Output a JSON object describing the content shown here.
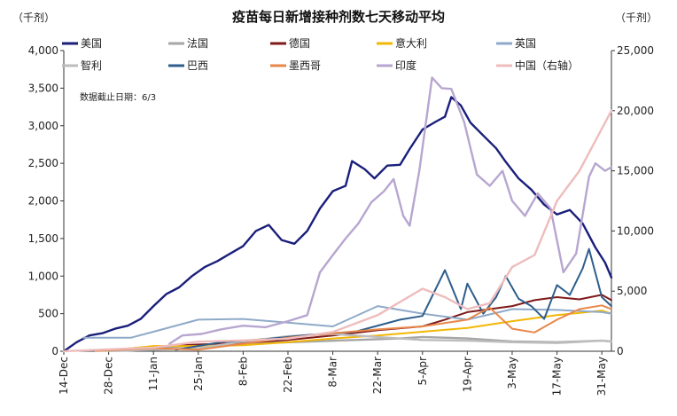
{
  "chart_data": {
    "type": "line",
    "title": "疫苗每日新增接种剂数七天移动平均",
    "left_unit": "（千剂）",
    "right_unit": "（千剂）",
    "note": "数据截止日期：6/3",
    "ylim": [
      0,
      4000
    ],
    "y2lim": [
      0,
      25000
    ],
    "yticks": [
      "0",
      "500",
      "1,000",
      "1,500",
      "2,000",
      "2,500",
      "3,000",
      "3,500",
      "4,000"
    ],
    "y2ticks": [
      "0",
      "5,000",
      "10,000",
      "15,000",
      "20,000",
      "25,000"
    ],
    "x_range": [
      "2020-12-14",
      "2021-06-03"
    ],
    "xticks": [
      {
        "date": "2020-12-14",
        "label": "14-Dec"
      },
      {
        "date": "2020-12-28",
        "label": "28-Dec"
      },
      {
        "date": "2021-01-11",
        "label": "11-Jan"
      },
      {
        "date": "2021-01-25",
        "label": "25-Jan"
      },
      {
        "date": "2021-02-08",
        "label": "8-Feb"
      },
      {
        "date": "2021-02-22",
        "label": "22-Feb"
      },
      {
        "date": "2021-03-08",
        "label": "8-Mar"
      },
      {
        "date": "2021-03-22",
        "label": "22-Mar"
      },
      {
        "date": "2021-04-05",
        "label": "5-Apr"
      },
      {
        "date": "2021-04-19",
        "label": "19-Apr"
      },
      {
        "date": "2021-05-03",
        "label": "3-May"
      },
      {
        "date": "2021-05-17",
        "label": "17-May"
      },
      {
        "date": "2021-05-31",
        "label": "31-May"
      }
    ],
    "series": [
      {
        "name": "美国",
        "color": "#1a1f7a",
        "width": 2.4,
        "axis": "left",
        "points": [
          [
            "2020-12-14",
            0
          ],
          [
            "2020-12-18",
            120
          ],
          [
            "2020-12-22",
            210
          ],
          [
            "2020-12-26",
            240
          ],
          [
            "2020-12-30",
            300
          ],
          [
            "2021-01-03",
            340
          ],
          [
            "2021-01-07",
            430
          ],
          [
            "2021-01-11",
            600
          ],
          [
            "2021-01-15",
            760
          ],
          [
            "2021-01-19",
            850
          ],
          [
            "2021-01-23",
            1000
          ],
          [
            "2021-01-27",
            1120
          ],
          [
            "2021-01-31",
            1200
          ],
          [
            "2021-02-04",
            1300
          ],
          [
            "2021-02-08",
            1400
          ],
          [
            "2021-02-12",
            1600
          ],
          [
            "2021-02-16",
            1680
          ],
          [
            "2021-02-20",
            1480
          ],
          [
            "2021-02-24",
            1430
          ],
          [
            "2021-02-28",
            1600
          ],
          [
            "2021-03-04",
            1900
          ],
          [
            "2021-03-08",
            2130
          ],
          [
            "2021-03-12",
            2200
          ],
          [
            "2021-03-14",
            2530
          ],
          [
            "2021-03-18",
            2420
          ],
          [
            "2021-03-21",
            2300
          ],
          [
            "2021-03-25",
            2470
          ],
          [
            "2021-03-29",
            2480
          ],
          [
            "2021-04-01",
            2690
          ],
          [
            "2021-04-05",
            2950
          ],
          [
            "2021-04-09",
            3050
          ],
          [
            "2021-04-12",
            3120
          ],
          [
            "2021-04-14",
            3380
          ],
          [
            "2021-04-17",
            3270
          ],
          [
            "2021-04-20",
            3040
          ],
          [
            "2021-04-24",
            2870
          ],
          [
            "2021-04-28",
            2700
          ],
          [
            "2021-05-01",
            2520
          ],
          [
            "2021-05-05",
            2300
          ],
          [
            "2021-05-09",
            2150
          ],
          [
            "2021-05-13",
            1950
          ],
          [
            "2021-05-17",
            1820
          ],
          [
            "2021-05-21",
            1880
          ],
          [
            "2021-05-25",
            1700
          ],
          [
            "2021-05-29",
            1380
          ],
          [
            "2021-06-01",
            1180
          ],
          [
            "2021-06-03",
            980
          ]
        ]
      },
      {
        "name": "法国",
        "color": "#a6a6a6",
        "width": 2.4,
        "axis": "left",
        "points": [
          [
            "2020-12-28",
            5
          ],
          [
            "2021-01-04",
            10
          ],
          [
            "2021-01-11",
            30
          ],
          [
            "2021-01-18",
            60
          ],
          [
            "2021-01-25",
            80
          ],
          [
            "2021-02-01",
            90
          ],
          [
            "2021-02-15",
            110
          ],
          [
            "2021-03-01",
            130
          ],
          [
            "2021-03-15",
            150
          ],
          [
            "2021-03-29",
            170
          ],
          [
            "2021-04-05",
            190
          ],
          [
            "2021-04-19",
            170
          ],
          [
            "2021-05-03",
            130
          ],
          [
            "2021-05-17",
            120
          ],
          [
            "2021-05-31",
            140
          ],
          [
            "2021-06-03",
            130
          ]
        ]
      },
      {
        "name": "德国",
        "color": "#7f1a1a",
        "width": 2.0,
        "axis": "left",
        "points": [
          [
            "2020-12-27",
            5
          ],
          [
            "2021-01-04",
            40
          ],
          [
            "2021-01-11",
            60
          ],
          [
            "2021-01-25",
            90
          ],
          [
            "2021-02-08",
            110
          ],
          [
            "2021-02-22",
            150
          ],
          [
            "2021-03-08",
            210
          ],
          [
            "2021-03-22",
            280
          ],
          [
            "2021-04-05",
            330
          ],
          [
            "2021-04-12",
            420
          ],
          [
            "2021-04-19",
            520
          ],
          [
            "2021-04-26",
            560
          ],
          [
            "2021-05-03",
            600
          ],
          [
            "2021-05-10",
            680
          ],
          [
            "2021-05-17",
            720
          ],
          [
            "2021-05-24",
            690
          ],
          [
            "2021-05-31",
            750
          ],
          [
            "2021-06-03",
            680
          ]
        ]
      },
      {
        "name": "意大利",
        "color": "#f2b705",
        "width": 2.0,
        "axis": "left",
        "points": [
          [
            "2020-12-27",
            5
          ],
          [
            "2021-01-04",
            40
          ],
          [
            "2021-01-11",
            70
          ],
          [
            "2021-01-25",
            70
          ],
          [
            "2021-02-08",
            80
          ],
          [
            "2021-02-22",
            120
          ],
          [
            "2021-03-08",
            170
          ],
          [
            "2021-03-22",
            210
          ],
          [
            "2021-04-05",
            260
          ],
          [
            "2021-04-19",
            310
          ],
          [
            "2021-05-03",
            400
          ],
          [
            "2021-05-17",
            480
          ],
          [
            "2021-05-31",
            540
          ],
          [
            "2021-06-03",
            500
          ]
        ]
      },
      {
        "name": "英国",
        "color": "#8faac8",
        "width": 2.0,
        "axis": "left",
        "points": [
          [
            "2020-12-20",
            180
          ],
          [
            "2021-01-04",
            180
          ],
          [
            "2021-01-11",
            260
          ],
          [
            "2021-01-25",
            420
          ],
          [
            "2021-02-08",
            430
          ],
          [
            "2021-02-22",
            380
          ],
          [
            "2021-03-08",
            330
          ],
          [
            "2021-03-22",
            600
          ],
          [
            "2021-04-05",
            500
          ],
          [
            "2021-04-19",
            420
          ],
          [
            "2021-05-03",
            560
          ],
          [
            "2021-05-17",
            550
          ],
          [
            "2021-05-31",
            520
          ],
          [
            "2021-06-03",
            500
          ]
        ]
      },
      {
        "name": "智利",
        "color": "#bdbdbd",
        "width": 2.4,
        "axis": "left",
        "points": [
          [
            "2020-12-24",
            5
          ],
          [
            "2021-01-11",
            20
          ],
          [
            "2021-01-25",
            40
          ],
          [
            "2021-02-08",
            130
          ],
          [
            "2021-02-22",
            200
          ],
          [
            "2021-03-08",
            230
          ],
          [
            "2021-03-22",
            190
          ],
          [
            "2021-04-05",
            150
          ],
          [
            "2021-04-19",
            140
          ],
          [
            "2021-05-03",
            120
          ],
          [
            "2021-05-17",
            110
          ],
          [
            "2021-05-31",
            140
          ],
          [
            "2021-06-03",
            130
          ]
        ]
      },
      {
        "name": "巴西",
        "color": "#2e5e8c",
        "width": 2.0,
        "axis": "left",
        "points": [
          [
            "2021-01-18",
            20
          ],
          [
            "2021-02-01",
            120
          ],
          [
            "2021-02-15",
            160
          ],
          [
            "2021-03-01",
            220
          ],
          [
            "2021-03-15",
            260
          ],
          [
            "2021-03-29",
            420
          ],
          [
            "2021-04-05",
            470
          ],
          [
            "2021-04-12",
            1080
          ],
          [
            "2021-04-17",
            560
          ],
          [
            "2021-04-19",
            900
          ],
          [
            "2021-04-24",
            500
          ],
          [
            "2021-04-28",
            720
          ],
          [
            "2021-05-01",
            1000
          ],
          [
            "2021-05-05",
            700
          ],
          [
            "2021-05-09",
            600
          ],
          [
            "2021-05-13",
            430
          ],
          [
            "2021-05-17",
            880
          ],
          [
            "2021-05-21",
            750
          ],
          [
            "2021-05-25",
            1100
          ],
          [
            "2021-05-27",
            1360
          ],
          [
            "2021-05-31",
            720
          ],
          [
            "2021-06-03",
            600
          ]
        ]
      },
      {
        "name": "墨西哥",
        "color": "#e8874a",
        "width": 2.0,
        "axis": "left",
        "points": [
          [
            "2020-12-24",
            5
          ],
          [
            "2021-01-11",
            40
          ],
          [
            "2021-01-25",
            20
          ],
          [
            "2021-02-08",
            100
          ],
          [
            "2021-02-22",
            180
          ],
          [
            "2021-03-08",
            240
          ],
          [
            "2021-03-22",
            290
          ],
          [
            "2021-04-05",
            330
          ],
          [
            "2021-04-19",
            420
          ],
          [
            "2021-04-26",
            580
          ],
          [
            "2021-05-03",
            300
          ],
          [
            "2021-05-10",
            250
          ],
          [
            "2021-05-17",
            420
          ],
          [
            "2021-05-24",
            560
          ],
          [
            "2021-05-31",
            610
          ],
          [
            "2021-06-03",
            560
          ]
        ]
      },
      {
        "name": "印度",
        "color": "#b7a6cf",
        "width": 2.4,
        "axis": "left",
        "points": [
          [
            "2021-01-16",
            100
          ],
          [
            "2021-01-20",
            210
          ],
          [
            "2021-01-26",
            230
          ],
          [
            "2021-02-01",
            290
          ],
          [
            "2021-02-08",
            340
          ],
          [
            "2021-02-15",
            320
          ],
          [
            "2021-02-22",
            400
          ],
          [
            "2021-02-28",
            480
          ],
          [
            "2021-03-04",
            1050
          ],
          [
            "2021-03-08",
            1280
          ],
          [
            "2021-03-12",
            1500
          ],
          [
            "2021-03-16",
            1700
          ],
          [
            "2021-03-20",
            1980
          ],
          [
            "2021-03-24",
            2130
          ],
          [
            "2021-03-27",
            2290
          ],
          [
            "2021-03-30",
            1800
          ],
          [
            "2021-04-01",
            1670
          ],
          [
            "2021-04-04",
            2400
          ],
          [
            "2021-04-08",
            3640
          ],
          [
            "2021-04-11",
            3500
          ],
          [
            "2021-04-14",
            3490
          ],
          [
            "2021-04-18",
            3050
          ],
          [
            "2021-04-22",
            2350
          ],
          [
            "2021-04-26",
            2200
          ],
          [
            "2021-04-30",
            2400
          ],
          [
            "2021-05-03",
            2000
          ],
          [
            "2021-05-07",
            1800
          ],
          [
            "2021-05-11",
            2100
          ],
          [
            "2021-05-15",
            1900
          ],
          [
            "2021-05-19",
            1050
          ],
          [
            "2021-05-23",
            1300
          ],
          [
            "2021-05-27",
            2320
          ],
          [
            "2021-05-29",
            2500
          ],
          [
            "2021-06-01",
            2400
          ],
          [
            "2021-06-03",
            2450
          ]
        ]
      },
      {
        "name": "中国（右轴）",
        "color": "#eebcbc",
        "width": 2.4,
        "axis": "right",
        "points": [
          [
            "2020-12-14",
            5
          ],
          [
            "2021-01-11",
            300
          ],
          [
            "2021-01-25",
            800
          ],
          [
            "2021-02-08",
            900
          ],
          [
            "2021-02-22",
            1050
          ],
          [
            "2021-03-08",
            1600
          ],
          [
            "2021-03-22",
            3000
          ],
          [
            "2021-04-05",
            5200
          ],
          [
            "2021-04-12",
            4500
          ],
          [
            "2021-04-19",
            3500
          ],
          [
            "2021-04-26",
            4000
          ],
          [
            "2021-05-03",
            7000
          ],
          [
            "2021-05-10",
            8000
          ],
          [
            "2021-05-17",
            12500
          ],
          [
            "2021-05-24",
            15000
          ],
          [
            "2021-05-31",
            18500
          ],
          [
            "2021-06-03",
            20000
          ]
        ]
      }
    ]
  }
}
